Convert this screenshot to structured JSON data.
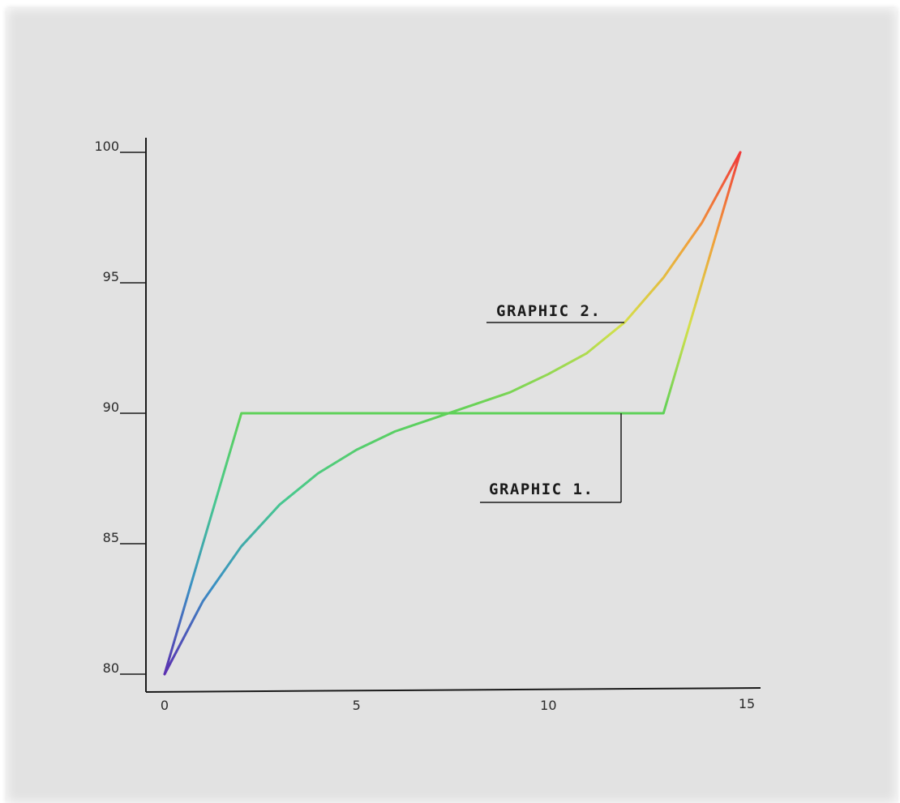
{
  "chart_data": {
    "type": "line",
    "title": "",
    "xlabel": "",
    "ylabel": "",
    "xlim": [
      0,
      15
    ],
    "ylim": [
      80,
      100
    ],
    "x_ticks": [
      "0",
      "5",
      "10",
      "15"
    ],
    "y_ticks": [
      "80",
      "85",
      "90",
      "95",
      "100"
    ],
    "grid": false,
    "colormap": [
      "#5b2fb0",
      "#3a8fc4",
      "#48c88f",
      "#5ed158",
      "#d4e04a",
      "#f0a03a",
      "#f03a3a"
    ],
    "series": [
      {
        "name": "GRAPHIC 1.",
        "x": [
          0,
          1,
          2,
          13,
          15
        ],
        "y": [
          80,
          85,
          90,
          90,
          100
        ]
      },
      {
        "name": "GRAPHIC 2.",
        "x": [
          0,
          1,
          2,
          3,
          4,
          5,
          6,
          7,
          8,
          9,
          10,
          11,
          12,
          13,
          14,
          15
        ],
        "y": [
          80,
          82.8,
          84.9,
          86.5,
          87.7,
          88.6,
          89.3,
          89.8,
          90.3,
          90.8,
          91.5,
          92.3,
          93.5,
          95.2,
          97.3,
          100
        ]
      }
    ]
  }
}
